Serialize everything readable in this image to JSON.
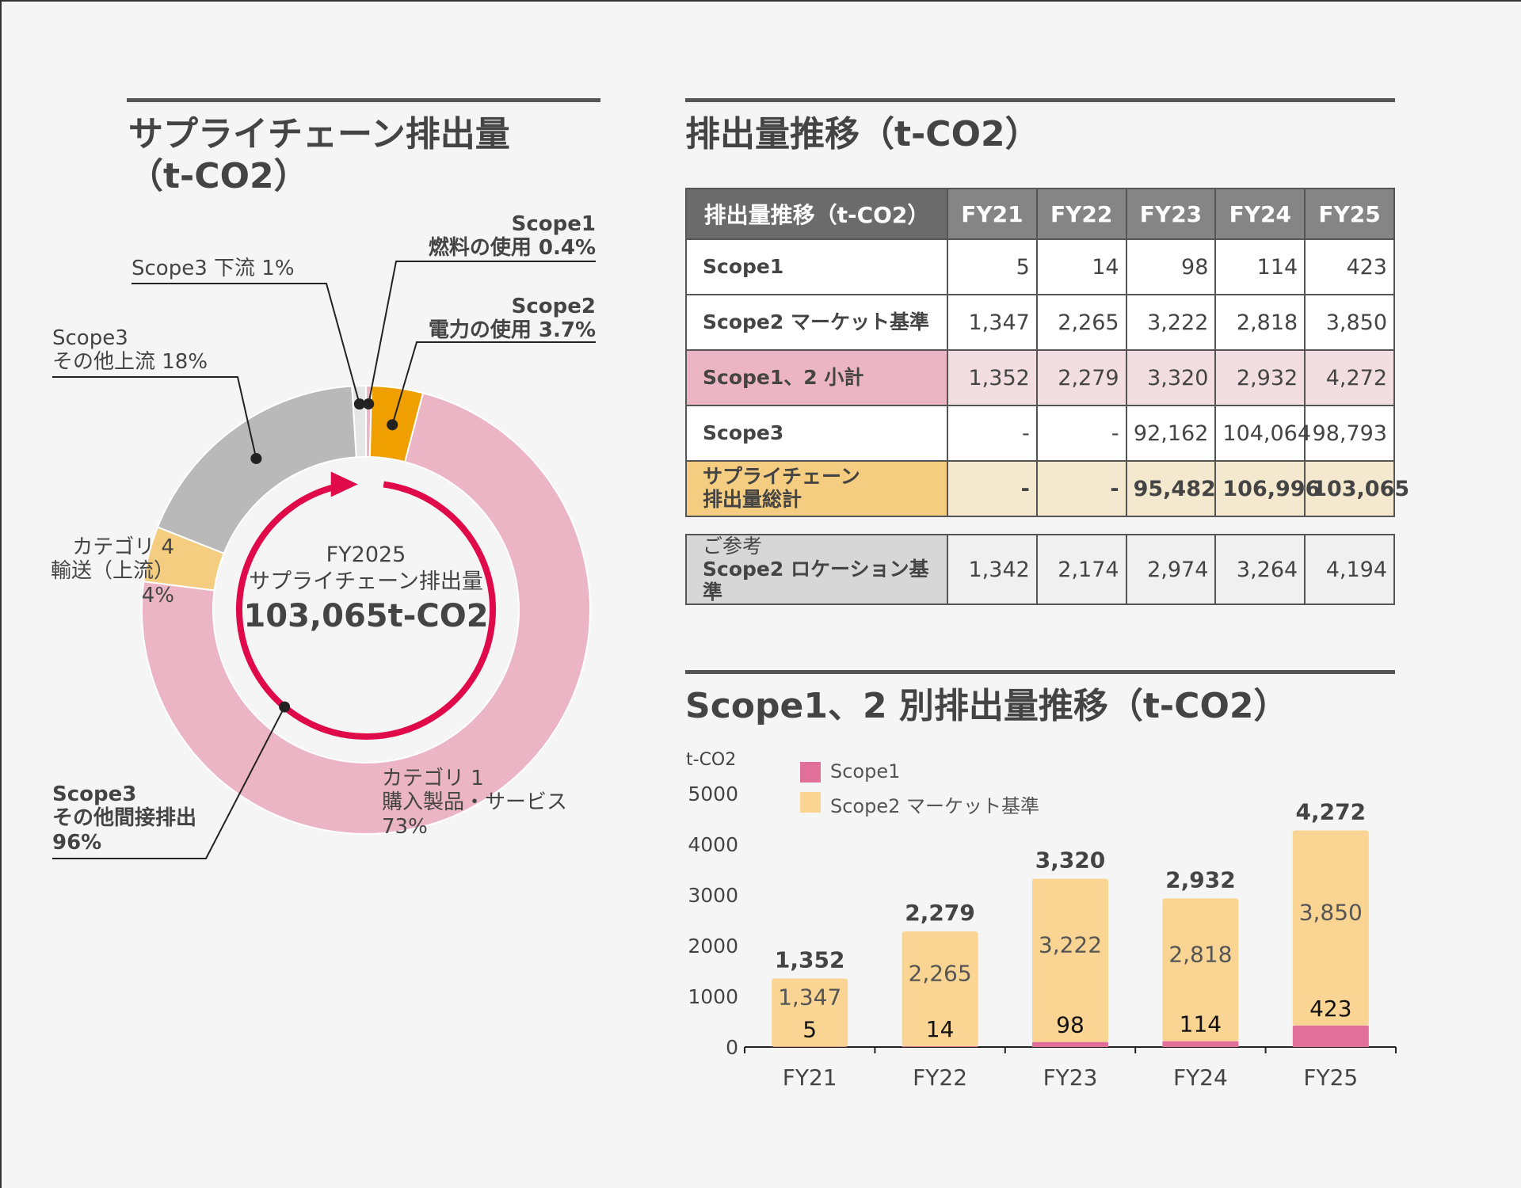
{
  "donut_section": {
    "title_line1": "サプライチェーン排出量",
    "title_line2": "（t-CO2）",
    "center": {
      "year": "FY2025",
      "subtitle": "サプライチェーン排出量",
      "total": "103,065t-CO2"
    },
    "labels": {
      "scope1": [
        "Scope1",
        "燃料の使用 0.4%"
      ],
      "scope2": [
        "Scope2",
        "電力の使用 3.7%"
      ],
      "scope3_down": [
        "Scope3 下流 1%"
      ],
      "scope3_other_up": [
        "Scope3",
        "その他上流 18%"
      ],
      "cat4": [
        "カテゴリ 4",
        "輸送（上流）",
        "4%"
      ],
      "cat1": [
        "カテゴリ 1",
        "購入製品・サービス",
        "73%"
      ],
      "scope3_indirect": [
        "Scope3",
        "その他間接排出",
        "96%"
      ]
    },
    "colors": {
      "scope1": "#ebb5c6",
      "scope2": "#ef9f00",
      "scope3_down": "#e6e6e6",
      "scope3_other_up": "#b9b9b9",
      "cat4": "#f4cd80",
      "cat1": "#ebb5c6",
      "arrow": "#e0094a"
    },
    "chart_data": {
      "type": "pie",
      "categories": [
        "Scope1 燃料の使用",
        "Scope2 電力の使用",
        "カテゴリ 1 購入製品・サービス",
        "カテゴリ 4 輸送（上流）",
        "Scope3 その他上流",
        "Scope3 下流"
      ],
      "values": [
        0.4,
        3.7,
        73,
        4,
        18,
        1
      ],
      "unit": "%"
    }
  },
  "table_section": {
    "title": "排出量推移（t-CO2）",
    "header": [
      "排出量推移（t-CO2）",
      "FY21",
      "FY22",
      "FY23",
      "FY24",
      "FY25"
    ],
    "rows": [
      {
        "label": [
          "Scope1"
        ],
        "values": [
          "5",
          "14",
          "98",
          "114",
          "423"
        ]
      },
      {
        "label": [
          "Scope2 マーケット基準"
        ],
        "values": [
          "1,347",
          "2,265",
          "3,222",
          "2,818",
          "3,850"
        ]
      },
      {
        "label": [
          "Scope1、2 小計"
        ],
        "values": [
          "1,352",
          "2,279",
          "3,320",
          "2,932",
          "4,272"
        ]
      },
      {
        "label": [
          "Scope3"
        ],
        "values": [
          "-",
          "-",
          "92,162",
          "104,064",
          "98,793"
        ]
      },
      {
        "label": [
          "サプライチェーン",
          "排出量総計"
        ],
        "values": [
          "-",
          "-",
          "95,482",
          "106,996",
          "103,065"
        ]
      }
    ],
    "reference_row": {
      "label": [
        "ご参考",
        "Scope2 ロケーション基準"
      ],
      "values": [
        "1,342",
        "2,174",
        "2,974",
        "3,264",
        "4,194"
      ]
    }
  },
  "bar_section": {
    "title": "Scope1、2 別排出量推移（t-CO2）",
    "colors": {
      "scope1": "#e06f9a",
      "scope2": "#f9d493"
    },
    "chart_data": {
      "type": "bar",
      "stacked": true,
      "categories": [
        "FY21",
        "FY22",
        "FY23",
        "FY24",
        "FY25"
      ],
      "series": [
        {
          "name": "Scope1",
          "values": [
            5,
            14,
            98,
            114,
            423
          ]
        },
        {
          "name": "Scope2 マーケット基準",
          "values": [
            1347,
            2265,
            3222,
            2818,
            3850
          ]
        }
      ],
      "totals": [
        1352,
        2279,
        3320,
        2932,
        4272
      ],
      "total_labels": [
        "1,352",
        "2,279",
        "3,320",
        "2,932",
        "4,272"
      ],
      "scope1_labels": [
        "5",
        "14",
        "98",
        "114",
        "423"
      ],
      "scope2_labels": [
        "1,347",
        "2,265",
        "3,222",
        "2,818",
        "3,850"
      ],
      "ylabel": "t-CO2",
      "ylim": [
        0,
        5000
      ],
      "yticks": [
        0,
        1000,
        2000,
        3000,
        4000,
        5000
      ],
      "legend_position": "top-left"
    }
  }
}
